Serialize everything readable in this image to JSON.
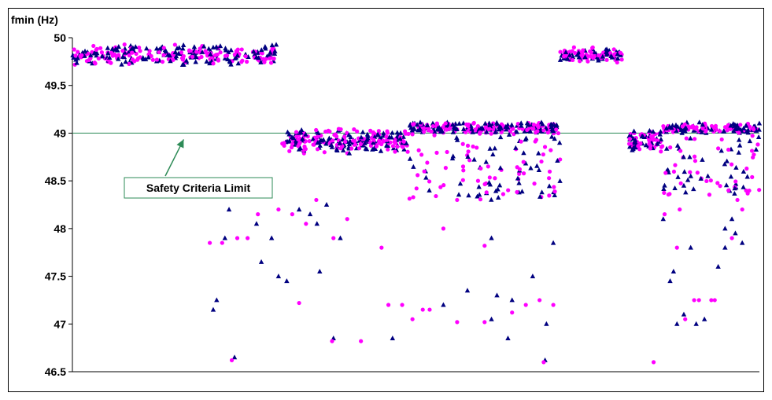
{
  "chart_data": {
    "type": "scatter",
    "title": "",
    "ylabel": "fmin (Hz)",
    "xlabel": "",
    "ylim": [
      46.5,
      50
    ],
    "yticks": [
      "46.5",
      "47",
      "47.5",
      "48",
      "48.5",
      "49",
      "49.5",
      "50"
    ],
    "xlim": [
      0,
      1000
    ],
    "grid": false,
    "legend": "none",
    "limit_line": {
      "y": 49,
      "color": "#2e8b57"
    },
    "annotation": {
      "text": "Safety Criteria Limit",
      "arrow_to": {
        "x": 162,
        "y": 49
      }
    },
    "colors": {
      "series_a": "#000080",
      "series_b": "#ff00ff",
      "line": "#2e8b57",
      "box_border": "#2e8b57"
    },
    "series": [
      {
        "marker": "triangle",
        "color": "#000080",
        "points": [
          [
            236,
            46.65
          ],
          [
            380,
            46.85
          ],
          [
            688,
            46.62
          ],
          [
            312,
            47.45
          ],
          [
            360,
            47.55
          ],
          [
            466,
            46.85
          ],
          [
            540,
            47.2
          ],
          [
            575,
            47.35
          ],
          [
            610,
            47.9
          ],
          [
            618,
            47.3
          ],
          [
            634,
            46.85
          ],
          [
            700,
            47.85
          ],
          [
            880,
            47.0
          ],
          [
            890,
            47.1
          ],
          [
            908,
            47.0
          ],
          [
            950,
            47.8
          ],
          [
            940,
            47.6
          ],
          [
            205,
            47.15
          ],
          [
            222,
            47.9
          ],
          [
            275,
            47.65
          ],
          [
            290,
            47.9
          ],
          [
            300,
            47.5
          ],
          [
            210,
            47.25
          ],
          [
            228,
            48.2
          ],
          [
            268,
            48.05
          ],
          [
            330,
            48.2
          ],
          [
            346,
            48.15
          ],
          [
            356,
            48.05
          ],
          [
            370,
            48.25
          ],
          [
            390,
            47.9
          ],
          [
            610,
            47.05
          ],
          [
            690,
            47.0
          ],
          [
            640,
            47.25
          ],
          [
            670,
            47.5
          ],
          [
            900,
            47.8
          ],
          [
            920,
            47.05
          ],
          [
            870,
            47.45
          ],
          [
            960,
            48.1
          ],
          [
            965,
            47.95
          ],
          [
            975,
            47.85
          ],
          [
            860,
            48.1
          ],
          [
            875,
            47.55
          ],
          [
            890,
            48.45
          ],
          [
            925,
            48.55
          ],
          [
            950,
            48.0
          ]
        ]
      },
      {
        "marker": "circle",
        "color": "#ff00ff",
        "points": [
          [
            232,
            46.62
          ],
          [
            378,
            46.82
          ],
          [
            686,
            46.6
          ],
          [
            330,
            47.22
          ],
          [
            380,
            47.9
          ],
          [
            420,
            46.82
          ],
          [
            460,
            47.2
          ],
          [
            520,
            47.15
          ],
          [
            560,
            47.02
          ],
          [
            600,
            47.82
          ],
          [
            640,
            47.12
          ],
          [
            680,
            47.25
          ],
          [
            700,
            47.2
          ],
          [
            846,
            46.6
          ],
          [
            862,
            48.15
          ],
          [
            884,
            48.2
          ],
          [
            892,
            47.05
          ],
          [
            912,
            47.25
          ],
          [
            930,
            47.25
          ],
          [
            960,
            47.9
          ],
          [
            975,
            48.2
          ],
          [
            200,
            47.85
          ],
          [
            218,
            47.85
          ],
          [
            240,
            47.9
          ],
          [
            255,
            47.9
          ],
          [
            270,
            48.15
          ],
          [
            300,
            48.2
          ],
          [
            320,
            48.15
          ],
          [
            340,
            48.05
          ],
          [
            355,
            48.3
          ],
          [
            400,
            48.1
          ],
          [
            450,
            47.8
          ],
          [
            480,
            47.2
          ],
          [
            495,
            47.05
          ],
          [
            510,
            47.15
          ],
          [
            540,
            48.0
          ],
          [
            560,
            48.3
          ],
          [
            600,
            47.02
          ],
          [
            660,
            47.2
          ],
          [
            880,
            47.8
          ],
          [
            905,
            47.25
          ],
          [
            935,
            47.25
          ],
          [
            955,
            48.4
          ],
          [
            968,
            48.3
          ]
        ]
      }
    ],
    "bands": [
      {
        "x": [
          0,
          300
        ],
        "y_center": 49.82,
        "spread": 0.12,
        "count": 300
      },
      {
        "x": [
          305,
          490
        ],
        "y_center": 48.92,
        "spread": 0.14,
        "count": 260
      },
      {
        "x": [
          490,
          710
        ],
        "y_center": 49.05,
        "spread": 0.07,
        "count": 260
      },
      {
        "x": [
          710,
          800
        ],
        "y_center": 49.82,
        "spread": 0.09,
        "count": 120
      },
      {
        "x": [
          810,
          860
        ],
        "y_center": 48.92,
        "spread": 0.12,
        "count": 80
      },
      {
        "x": [
          860,
          1000
        ],
        "y_center": 49.05,
        "spread": 0.07,
        "count": 140
      }
    ],
    "scatter_columns": [
      {
        "x": [
          490,
          710
        ],
        "y_range": [
          48.3,
          49.0
        ],
        "count": 120
      },
      {
        "x": [
          860,
          1000
        ],
        "y_range": [
          48.35,
          49.0
        ],
        "count": 80
      }
    ]
  }
}
